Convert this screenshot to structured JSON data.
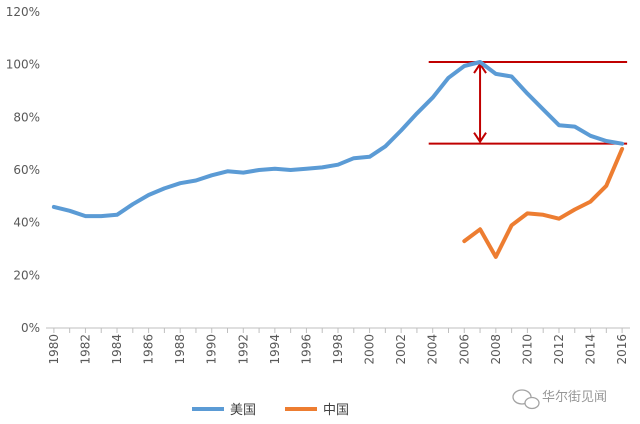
{
  "chart_data": {
    "type": "line",
    "title": "",
    "xlabel": "",
    "ylabel": "",
    "x": [
      1980,
      1981,
      1982,
      1983,
      1984,
      1985,
      1986,
      1987,
      1988,
      1989,
      1990,
      1991,
      1992,
      1993,
      1994,
      1995,
      1996,
      1997,
      1998,
      1999,
      2000,
      2001,
      2002,
      2003,
      2004,
      2005,
      2006,
      2007,
      2008,
      2009,
      2010,
      2011,
      2012,
      2013,
      2014,
      2015,
      2016
    ],
    "x_ticks": [
      "1980",
      "1982",
      "1984",
      "1986",
      "1988",
      "1990",
      "1992",
      "1994",
      "1996",
      "1998",
      "2000",
      "2002",
      "2004",
      "2006",
      "2008",
      "2010",
      "2012",
      "2014",
      "2016"
    ],
    "y_ticks": [
      "0%",
      "20%",
      "40%",
      "60%",
      "80%",
      "100%",
      "120%"
    ],
    "ylim": [
      0,
      120
    ],
    "grid": false,
    "legend_position": "bottom-left",
    "series": [
      {
        "name": "美国",
        "color": "#5B9BD5",
        "values": [
          46,
          44.5,
          42.5,
          42.5,
          43,
          47,
          50.5,
          53,
          55,
          56,
          58,
          59.5,
          59,
          60,
          60.5,
          60,
          60.5,
          61,
          62,
          64.5,
          65,
          69,
          75,
          81.5,
          87.5,
          95,
          99.5,
          101,
          96.5,
          95.5,
          89,
          83,
          77,
          76.5,
          73,
          71,
          70
        ]
      },
      {
        "name": "中国",
        "color": "#ED7D31",
        "values": [
          null,
          null,
          null,
          null,
          null,
          null,
          null,
          null,
          null,
          null,
          null,
          null,
          null,
          null,
          null,
          null,
          null,
          null,
          null,
          null,
          null,
          null,
          null,
          null,
          null,
          null,
          33,
          37.5,
          27,
          39,
          43.5,
          43,
          41.5,
          45,
          48,
          54,
          68
        ]
      }
    ],
    "annotation": {
      "color": "#C00000",
      "upper_line_y": 101,
      "lower_line_y": 70,
      "line_x_start": 2004,
      "line_x_end": 2016,
      "arrow_x": 2007
    }
  },
  "watermark": {
    "text": "华尔街见闻",
    "icon": "wechat-icon"
  }
}
